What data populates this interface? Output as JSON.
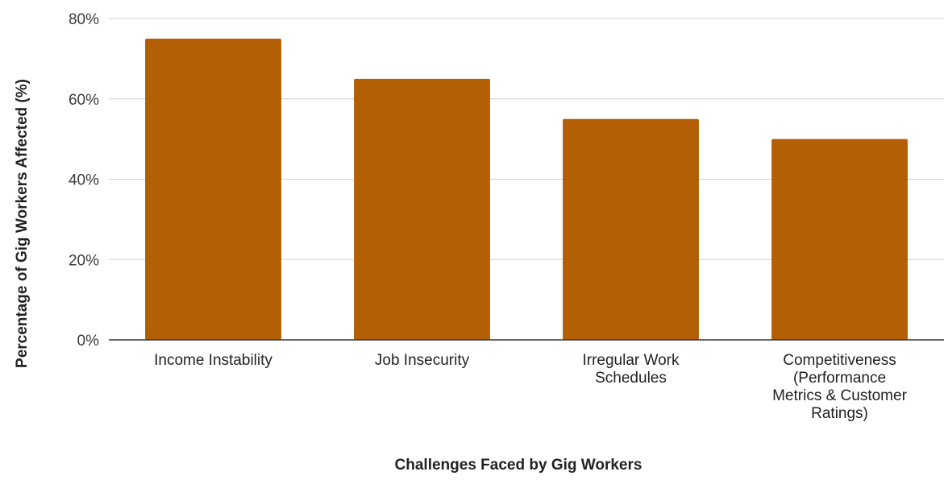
{
  "chart_data": {
    "type": "bar",
    "categories": [
      [
        "Income Instability"
      ],
      [
        "Job Insecurity"
      ],
      [
        "Irregular Work",
        "Schedules"
      ],
      [
        "Competitiveness",
        "(Performance",
        "Metrics & Customer",
        "Ratings)"
      ]
    ],
    "values": [
      75,
      65,
      55,
      50
    ],
    "ylim": [
      0,
      80
    ],
    "yticks": [
      0,
      20,
      40,
      60,
      80
    ],
    "ytick_labels": [
      "0%",
      "20%",
      "40%",
      "60%",
      "80%"
    ],
    "xlabel": "Challenges Faced by Gig Workers",
    "ylabel": "Percentage of Gig Workers Affected (%)",
    "title": "",
    "grid": true,
    "legend": "none",
    "bar_color": "#b35f06"
  }
}
